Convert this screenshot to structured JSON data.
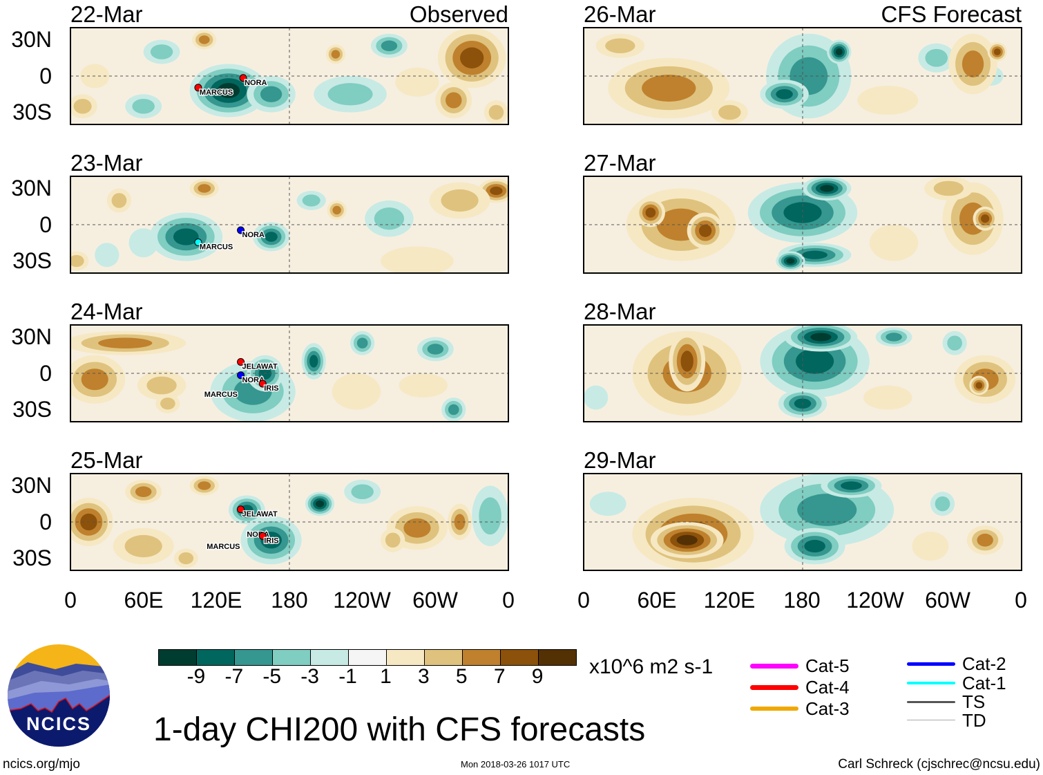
{
  "panels": [
    {
      "title": "22-Mar",
      "tag": "Observed",
      "storms": [
        {
          "name": "MARCUS"
        },
        {
          "name": "NORA"
        }
      ]
    },
    {
      "title": "23-Mar",
      "tag": "",
      "storms": [
        {
          "name": "MARCUS"
        },
        {
          "name": "NORA"
        }
      ]
    },
    {
      "title": "24-Mar",
      "tag": "",
      "storms": [
        {
          "name": "JELAWAT"
        },
        {
          "name": "NORA"
        },
        {
          "name": "IRIS"
        },
        {
          "name": "MARCUS"
        }
      ]
    },
    {
      "title": "25-Mar",
      "tag": "",
      "storms": [
        {
          "name": "JELAWAT"
        },
        {
          "name": "NORA"
        },
        {
          "name": "IRIS"
        },
        {
          "name": "MARCUS"
        }
      ]
    },
    {
      "title": "26-Mar",
      "tag": "CFS Forecast",
      "storms": []
    },
    {
      "title": "27-Mar",
      "tag": "",
      "storms": []
    },
    {
      "title": "28-Mar",
      "tag": "",
      "storms": []
    },
    {
      "title": "29-Mar",
      "tag": "",
      "storms": []
    }
  ],
  "lat_labels": [
    "30N",
    "0",
    "30S"
  ],
  "lon_labels": [
    "0",
    "60E",
    "120E",
    "180",
    "120W",
    "60W",
    "0"
  ],
  "colorbar": {
    "labels": [
      "-9",
      "-7",
      "-5",
      "-3",
      "-1",
      "1",
      "3",
      "5",
      "7",
      "9"
    ],
    "colors": [
      "#003c30",
      "#01665e",
      "#35978f",
      "#80cdc1",
      "#c7eae5",
      "#f5f5f5",
      "#f6e8c3",
      "#dfc27d",
      "#bf812d",
      "#8c510a",
      "#543005"
    ],
    "units": "x10^6 m2 s-1"
  },
  "legend": [
    {
      "label": "Cat-5",
      "color": "#ff00ff"
    },
    {
      "label": "Cat-4",
      "color": "#ff0000"
    },
    {
      "label": "Cat-3",
      "color": "#f0a800"
    },
    {
      "label": "Cat-2",
      "color": "#0000ff"
    },
    {
      "label": "Cat-1",
      "color": "#00ffff"
    },
    {
      "label": "TS",
      "color": "#555555"
    },
    {
      "label": "TD",
      "color": "#aaaaaa"
    }
  ],
  "title": "1-day CHI200 with CFS forecasts",
  "footer": {
    "left": "ncics.org/mjo",
    "center": "Mon 2018-03-26 1017 UTC",
    "right": "Carl Schreck (cjschrec@ncsu.edu)"
  },
  "logo": {
    "text": "NCICS"
  },
  "chart_data": {
    "type": "heatmap",
    "title": "1-day CHI200 with CFS forecasts",
    "units": "x10^6 m2 s-1",
    "levels": [
      -9,
      -7,
      -5,
      -3,
      -1,
      1,
      3,
      5,
      7,
      9
    ],
    "x_ticks": [
      "0",
      "60E",
      "120E",
      "180",
      "120W",
      "60W",
      "0"
    ],
    "y_ticks": [
      "30N",
      "0",
      "30S"
    ],
    "xlim": [
      0,
      360
    ],
    "ylim": [
      -40,
      40
    ],
    "observed_dates": [
      "22-Mar",
      "23-Mar",
      "24-Mar",
      "25-Mar"
    ],
    "forecast_dates": [
      "26-Mar",
      "27-Mar",
      "28-Mar",
      "29-Mar"
    ]
  }
}
